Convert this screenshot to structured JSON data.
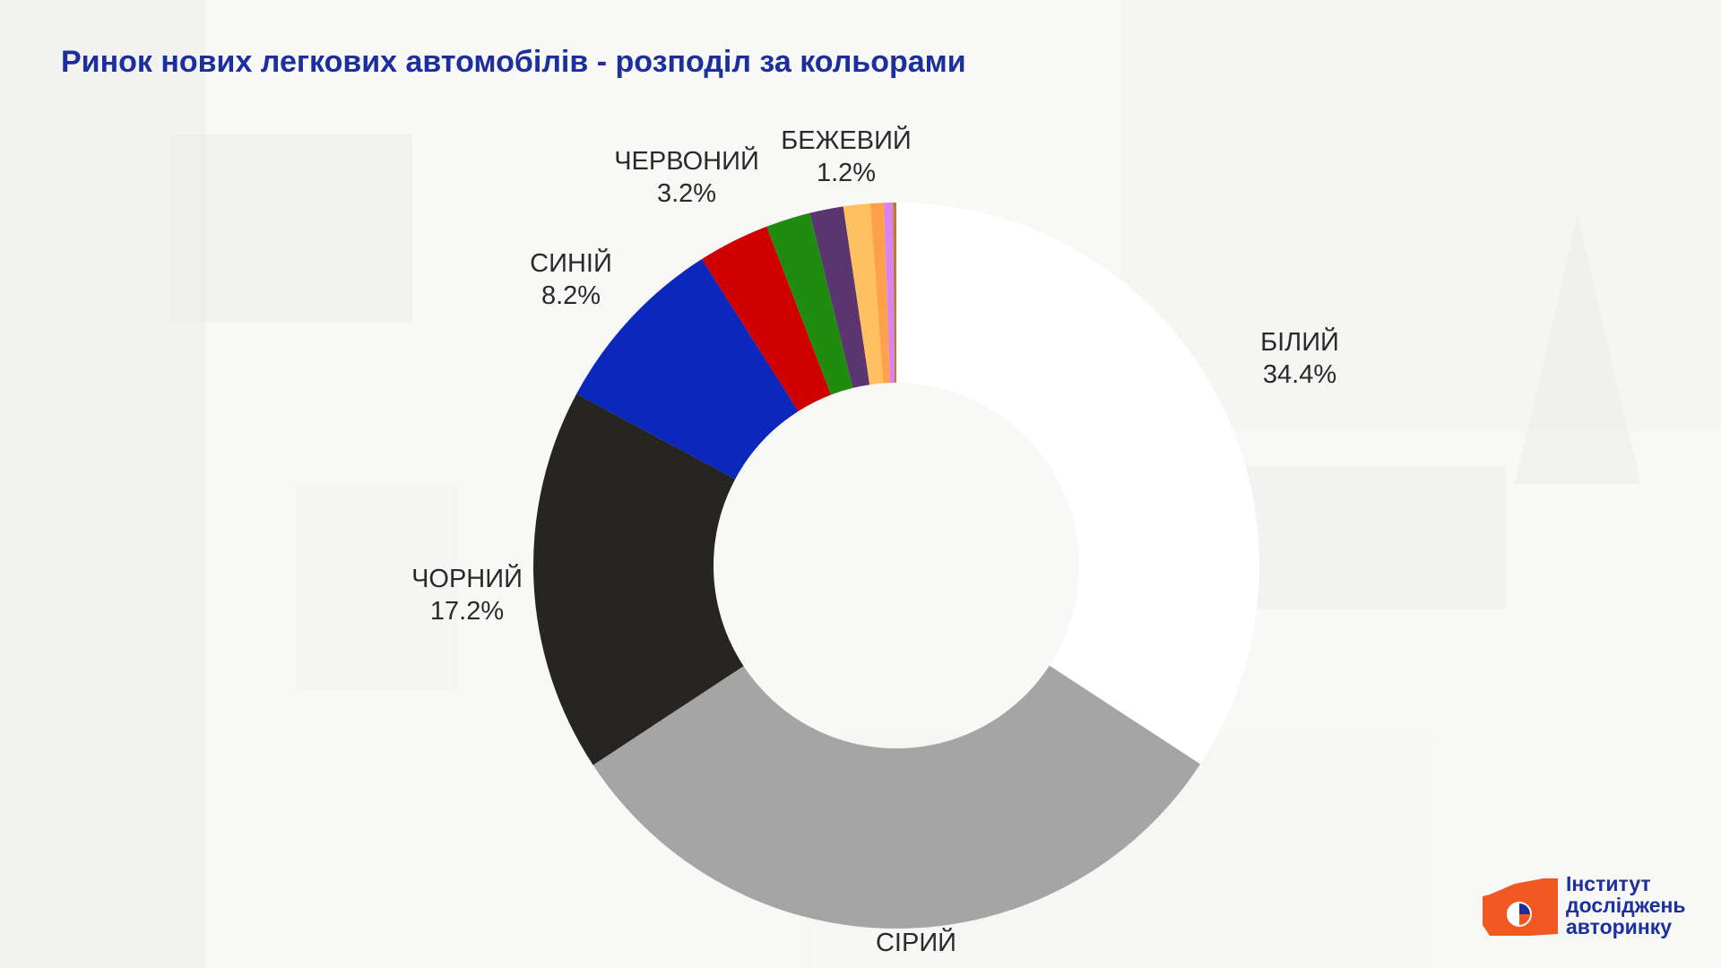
{
  "title": "Ринок нових легкових автомобілів - розподіл за кольорами",
  "logo": {
    "line1": "Інститут",
    "line2": "досліджень",
    "line3": "авторинку",
    "color_orange": "#f05a22",
    "color_blue": "#1b2f9e"
  },
  "chart_data": {
    "type": "pie",
    "variant": "donut",
    "title": "Ринок нових легкових автомобілів - розподіл за кольорами",
    "slices": [
      {
        "label": "БІЛИЙ",
        "value": 34.4,
        "value_label": "34.4%",
        "color": "#ffffff"
      },
      {
        "label": "СІРИЙ",
        "value": 31.7,
        "value_label": "",
        "color": "#a5a5a5"
      },
      {
        "label": "ЧОРНИЙ",
        "value": 17.2,
        "value_label": "17.2%",
        "color": "#262522"
      },
      {
        "label": "СИНІЙ",
        "value": 8.2,
        "value_label": "8.2%",
        "color": "#0b27bc"
      },
      {
        "label": "ЧЕРВОНИЙ",
        "value": 3.2,
        "value_label": "3.2%",
        "color": "#d10000"
      },
      {
        "label": "",
        "value": 2.0,
        "value_label": "",
        "color": "#1f8c10"
      },
      {
        "label": "",
        "value": 1.5,
        "value_label": "",
        "color": "#5a3570"
      },
      {
        "label": "БЕЖЕВИЙ",
        "value": 1.2,
        "value_label": "1.2%",
        "color": "#ffc061"
      },
      {
        "label": "",
        "value": 0.6,
        "value_label": "",
        "color": "#ffa14a"
      },
      {
        "label": "",
        "value": 0.4,
        "value_label": "",
        "color": "#d982f2"
      },
      {
        "label": "",
        "value": 0.15,
        "value_label": "",
        "color": "#c07a30"
      }
    ],
    "start": "top, clockwise from white"
  }
}
